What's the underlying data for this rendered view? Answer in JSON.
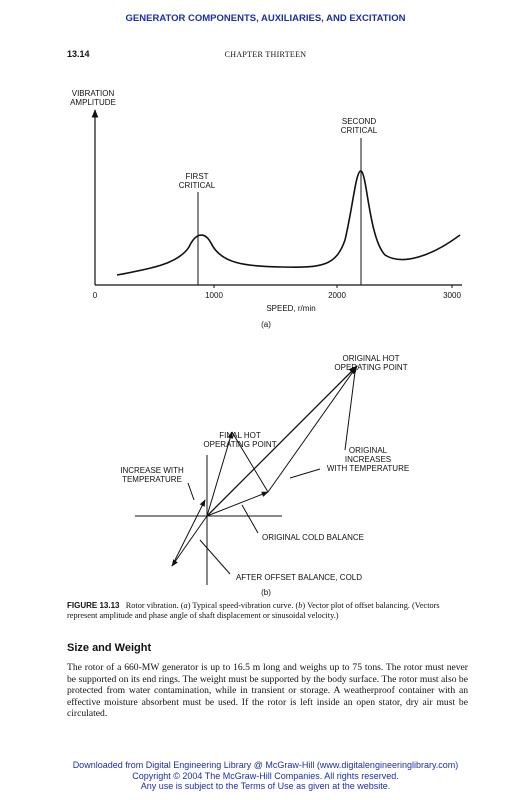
{
  "header": {
    "running_title": "GENERATOR COMPONENTS, AUXILIARIES, AND EXCITATION",
    "page_number": "13.14",
    "chapter": "CHAPTER THIRTEEN"
  },
  "figure_a": {
    "y_label": [
      "VIBRATION",
      "AMPLITUDE"
    ],
    "x_ticks": [
      "0",
      "1000",
      "2000",
      "3000"
    ],
    "x_label": "SPEED, r/min",
    "first_critical": [
      "FIRST",
      "CRITICAL"
    ],
    "second_critical": [
      "SECOND",
      "CRITICAL"
    ],
    "panel": "(a)"
  },
  "figure_b": {
    "original_hot": [
      "ORIGINAL HOT",
      "OPERATING POINT"
    ],
    "final_hot": [
      "FINAL HOT",
      "OPERATING POINT"
    ],
    "original_increases": [
      "ORIGINAL",
      "INCREASES",
      "WITH TEMPERATURE"
    ],
    "increase_with": [
      "INCREASE WITH",
      "TEMPERATURE"
    ],
    "original_cold": "ORIGINAL COLD BALANCE",
    "after_offset": "AFTER OFFSET BALANCE, COLD",
    "panel": "(b)"
  },
  "caption": {
    "label": "FIGURE 13.13",
    "parts": [
      "Rotor vibration. (",
      "a",
      ") Typical speed-vibration curve. (",
      "b",
      ") Vector plot of offset balancing. (Vectors represent amplitude and phase angle of shaft displacement or sinusoidal velocity.)"
    ]
  },
  "section": {
    "heading": "Size and Weight",
    "body": "The rotor of a 660-MW generator is up to 16.5 m long and weighs up to 75 tons. The rotor must never be supported on its end rings. The weight must be supported by the body surface. The rotor must also be protected from water contamination, while in transient or storage. A weatherproof container with an effective moisture absorbent must be used. If the rotor is left inside an open stator, dry air must be circulated."
  },
  "footer": [
    "Downloaded from Digital Engineering Library @ McGraw-Hill (www.digitalengineeringlibrary.com)",
    "Copyright © 2004 The McGraw-Hill Companies. All rights reserved.",
    "Any use is subject to the Terms of Use as given at the website."
  ]
}
